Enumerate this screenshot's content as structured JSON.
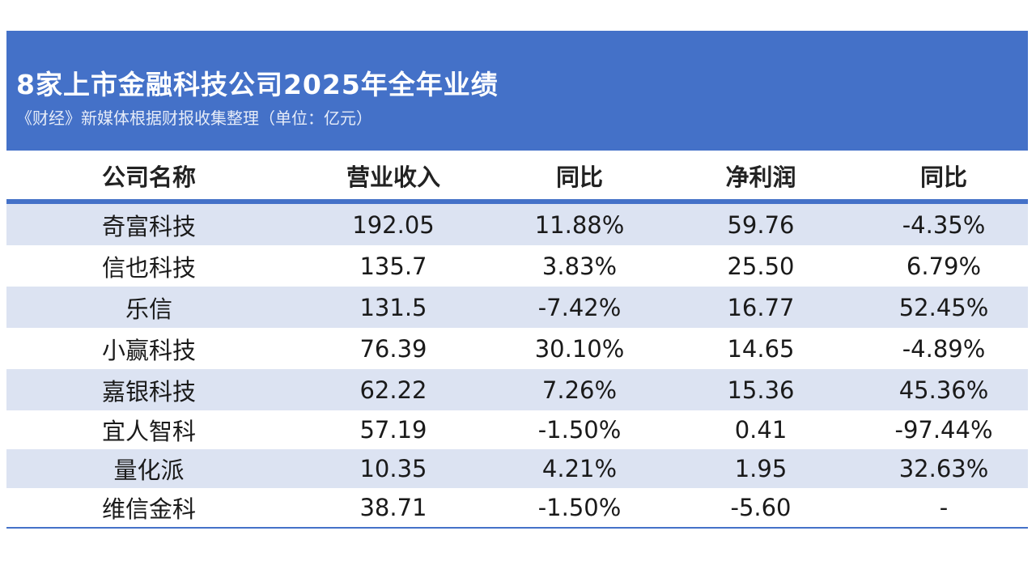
{
  "header": {
    "title": "8家上市金融科技公司2025年全年业绩",
    "subtitle": "《财经》新媒体根据财报收集整理（单位：亿元）"
  },
  "chart_data": {
    "type": "table",
    "title": "8家上市金融科技公司2025年全年业绩",
    "subtitle": "《财经》新媒体根据财报收集整理（单位：亿元）",
    "columns": [
      "公司名称",
      "营业收入",
      "同比",
      "净利润",
      "同比"
    ],
    "rows": [
      [
        "奇富科技",
        "192.05",
        "11.88%",
        "59.76",
        "-4.35%"
      ],
      [
        "信也科技",
        "135.7",
        "3.83%",
        "25.50",
        "6.79%"
      ],
      [
        "乐信",
        "131.5",
        "-7.42%",
        "16.77",
        "52.45%"
      ],
      [
        "小赢科技",
        "76.39",
        "30.10%",
        "14.65",
        "-4.89%"
      ],
      [
        "嘉银科技",
        "62.22",
        "7.26%",
        "15.36",
        "45.36%"
      ],
      [
        "宜人智科",
        "57.19",
        "-1.50%",
        "0.41",
        "-97.44%"
      ],
      [
        "量化派",
        "10.35",
        "4.21%",
        "1.95",
        "32.63%"
      ],
      [
        "维信金科",
        "38.71",
        "-1.50%",
        "-5.60",
        "-"
      ]
    ]
  }
}
